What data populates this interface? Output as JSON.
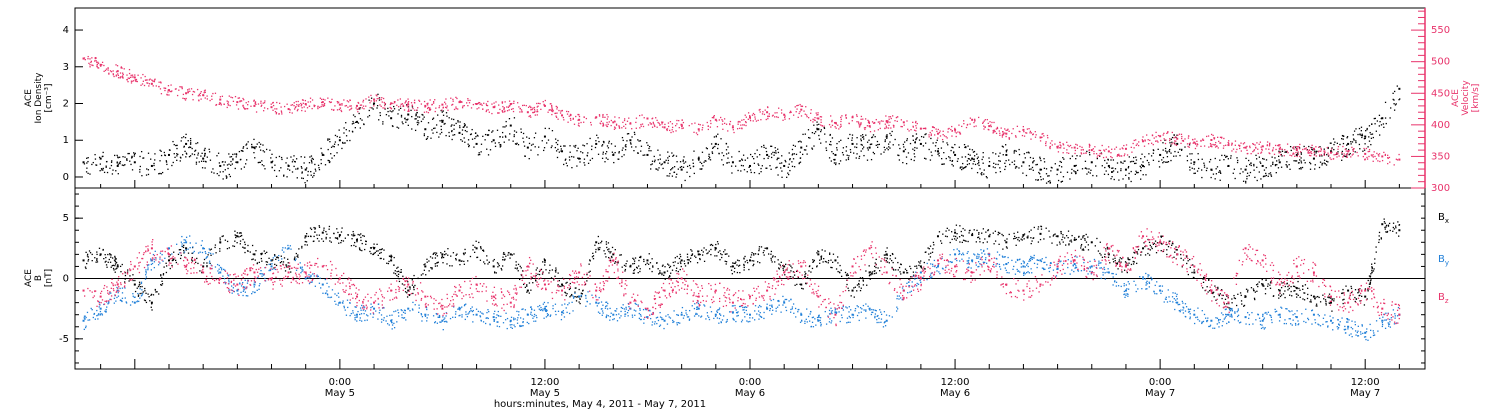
{
  "colors": {
    "black": "#000000",
    "pink": "#e8336b",
    "blue": "#1f7fd8",
    "frame": "#000000"
  },
  "x_axis": {
    "label": "hours:minutes, May  4, 2011 - May  7, 2011",
    "range_hours": [
      -15.5,
      63.5
    ],
    "ticks": [
      {
        "hour": 0,
        "time": "0:00",
        "date": "May 5"
      },
      {
        "hour": 12,
        "time": "12:00",
        "date": "May 5"
      },
      {
        "hour": 24,
        "time": "0:00",
        "date": "May 6"
      },
      {
        "hour": 36,
        "time": "12:00",
        "date": "May 6"
      },
      {
        "hour": 48,
        "time": "0:00",
        "date": "May 7"
      },
      {
        "hour": 60,
        "time": "12:00",
        "date": "May 7"
      }
    ]
  },
  "chart_data": [
    {
      "type": "scatter",
      "panel": "top",
      "ylabel_left": [
        "ACE",
        "Ion Density",
        "[cm⁻³]"
      ],
      "ylabel_right": [
        "ACE",
        "Velocity",
        "[km/s]"
      ],
      "ylim_left": [
        -0.3,
        4.6
      ],
      "ylim_right": [
        300,
        585
      ],
      "yticks_left": [
        0,
        1,
        2,
        3,
        4
      ],
      "yticks_right": [
        300,
        350,
        400,
        450,
        500,
        550
      ],
      "grid": false,
      "series": [
        {
          "name": "Ion Density",
          "axis": "left",
          "color": "#000000",
          "x": [
            -15,
            -14,
            -13,
            -12,
            -11,
            -10,
            -9,
            -8,
            -7,
            -6,
            -5,
            -4,
            -3,
            -2,
            -1,
            0,
            1,
            2,
            3,
            4,
            5,
            6,
            7,
            8,
            9,
            10,
            11,
            12,
            13,
            14,
            15,
            16,
            17,
            18,
            19,
            20,
            21,
            22,
            23,
            24,
            25,
            26,
            27,
            28,
            29,
            30,
            31,
            32,
            33,
            34,
            35,
            36,
            37,
            38,
            39,
            40,
            41,
            42,
            43,
            44,
            45,
            46,
            47,
            48,
            49,
            50,
            51,
            52,
            53,
            54,
            55,
            56,
            57,
            58,
            59,
            60,
            61,
            62
          ],
          "y": [
            0.4,
            0.5,
            0.3,
            0.4,
            0.3,
            0.6,
            0.9,
            0.5,
            0.3,
            0.4,
            0.8,
            0.4,
            0.3,
            0.2,
            0.6,
            1.0,
            1.5,
            2.0,
            1.6,
            1.7,
            1.3,
            1.5,
            1.2,
            0.9,
            1.0,
            1.4,
            0.8,
            1.1,
            0.7,
            0.5,
            0.9,
            0.6,
            1.0,
            0.6,
            0.4,
            0.2,
            0.5,
            0.9,
            0.4,
            0.3,
            0.6,
            0.3,
            0.8,
            1.3,
            0.6,
            0.9,
            0.8,
            1.1,
            0.7,
            0.9,
            0.7,
            0.6,
            0.5,
            0.3,
            0.6,
            0.4,
            0.2,
            0.2,
            0.3,
            0.4,
            0.3,
            0.2,
            0.3,
            0.6,
            0.9,
            0.4,
            0.2,
            0.3,
            0.2,
            0.3,
            0.4,
            0.6,
            0.5,
            0.7,
            0.9,
            1.1,
            1.6,
            2.4
          ]
        },
        {
          "name": "Velocity",
          "axis": "right",
          "color": "#e8336b",
          "x": [
            -15,
            -14,
            -13,
            -12,
            -11,
            -10,
            -9,
            -8,
            -7,
            -6,
            -5,
            -4,
            -3,
            -2,
            -1,
            0,
            1,
            2,
            3,
            4,
            5,
            6,
            7,
            8,
            9,
            10,
            11,
            12,
            13,
            14,
            15,
            16,
            17,
            18,
            19,
            20,
            21,
            22,
            23,
            24,
            25,
            26,
            27,
            28,
            29,
            30,
            31,
            32,
            33,
            34,
            35,
            36,
            37,
            38,
            39,
            40,
            41,
            42,
            43,
            44,
            45,
            46,
            47,
            48,
            49,
            50,
            51,
            52,
            53,
            54,
            55,
            56,
            57,
            58,
            59,
            60,
            61,
            62
          ],
          "y": [
            505,
            495,
            485,
            475,
            465,
            455,
            450,
            447,
            440,
            436,
            430,
            428,
            425,
            433,
            436,
            432,
            430,
            440,
            434,
            432,
            430,
            432,
            436,
            433,
            428,
            433,
            420,
            430,
            415,
            408,
            412,
            404,
            402,
            410,
            396,
            400,
            393,
            408,
            396,
            412,
            420,
            416,
            424,
            410,
            403,
            412,
            398,
            406,
            404,
            394,
            386,
            392,
            408,
            398,
            386,
            392,
            380,
            364,
            364,
            360,
            358,
            362,
            374,
            382,
            378,
            372,
            376,
            368,
            364,
            366,
            362,
            360,
            362,
            356,
            358,
            354,
            350,
            345
          ]
        }
      ]
    },
    {
      "type": "scatter",
      "panel": "bottom",
      "ylabel_left": [
        "ACE",
        "B",
        "[nT]"
      ],
      "ylim": [
        -7.5,
        7.5
      ],
      "yticks": [
        -5,
        0,
        5
      ],
      "zero_line": true,
      "grid": false,
      "legend_position": "right",
      "series": [
        {
          "name": "Bx",
          "legend_base": "B",
          "legend_sub": "x",
          "color": "#000000",
          "x": [
            -15,
            -14,
            -13,
            -12,
            -11,
            -10,
            -9,
            -8,
            -7,
            -6,
            -5,
            -4,
            -3,
            -2,
            -1,
            0,
            1,
            2,
            3,
            4,
            5,
            6,
            7,
            8,
            9,
            10,
            11,
            12,
            13,
            14,
            15,
            16,
            17,
            18,
            19,
            20,
            21,
            22,
            23,
            24,
            25,
            26,
            27,
            28,
            29,
            30,
            31,
            32,
            33,
            34,
            35,
            36,
            37,
            38,
            39,
            40,
            41,
            42,
            43,
            44,
            45,
            46,
            47,
            48,
            49,
            50,
            51,
            52,
            53,
            54,
            55,
            56,
            57,
            58,
            59,
            60,
            61,
            62
          ],
          "y": [
            1.5,
            2.0,
            1.0,
            -0.5,
            -2.0,
            1.5,
            2.5,
            1.0,
            3.0,
            3.5,
            2.0,
            1.5,
            1.0,
            3.5,
            3.8,
            3.6,
            3.2,
            2.5,
            1.5,
            -1.0,
            1.0,
            2.0,
            1.5,
            2.5,
            1.0,
            2.0,
            -1.0,
            1.5,
            -0.5,
            -1.5,
            3.0,
            2.0,
            1.0,
            1.5,
            0.5,
            1.5,
            2.0,
            2.5,
            1.0,
            1.5,
            2.5,
            1.0,
            -0.5,
            2.0,
            1.5,
            -1.0,
            0.5,
            2.0,
            0.5,
            1.0,
            3.5,
            3.8,
            3.6,
            3.5,
            3.0,
            3.6,
            3.7,
            3.5,
            3.2,
            3.0,
            2.0,
            1.0,
            2.5,
            3.0,
            2.0,
            0.5,
            -1.0,
            -2.0,
            -1.5,
            -0.5,
            -1.0,
            -0.8,
            -1.5,
            -2.0,
            -1.0,
            -1.5,
            4.5,
            4.0
          ]
        },
        {
          "name": "By",
          "legend_base": "B",
          "legend_sub": "y",
          "color": "#1f7fd8",
          "x": [
            -15,
            -14,
            -13,
            -12,
            -11,
            -10,
            -9,
            -8,
            -7,
            -6,
            -5,
            -4,
            -3,
            -2,
            -1,
            0,
            1,
            2,
            3,
            4,
            5,
            6,
            7,
            8,
            9,
            10,
            11,
            12,
            13,
            14,
            15,
            16,
            17,
            18,
            19,
            20,
            21,
            22,
            23,
            24,
            25,
            26,
            27,
            28,
            29,
            30,
            31,
            32,
            33,
            34,
            35,
            36,
            37,
            38,
            39,
            40,
            41,
            42,
            43,
            44,
            45,
            46,
            47,
            48,
            49,
            50,
            51,
            52,
            53,
            54,
            55,
            56,
            57,
            58,
            59,
            60,
            61,
            62
          ],
          "y": [
            -3.5,
            -2.5,
            -1.0,
            -2.0,
            1.5,
            2.5,
            3.0,
            2.5,
            0.5,
            -1.0,
            -0.5,
            1.0,
            2.5,
            0.0,
            -0.5,
            -2.0,
            -3.0,
            -2.5,
            -3.5,
            -2.5,
            -3.0,
            -3.5,
            -2.5,
            -3.0,
            -3.2,
            -3.5,
            -3.0,
            -2.5,
            -2.8,
            -1.5,
            -2.0,
            -3.0,
            -2.5,
            -3.2,
            -3.5,
            -3.0,
            -2.5,
            -3.0,
            -2.8,
            -3.0,
            -2.5,
            -2.0,
            -3.0,
            -3.5,
            -2.8,
            -3.0,
            -2.5,
            -3.5,
            -1.0,
            0.5,
            1.0,
            2.0,
            1.5,
            2.0,
            1.2,
            1.0,
            1.5,
            0.8,
            1.2,
            1.0,
            0.5,
            -1.0,
            0.0,
            -1.0,
            -2.0,
            -3.0,
            -3.5,
            -3.0,
            -3.2,
            -3.5,
            -3.0,
            -3.2,
            -3.0,
            -3.5,
            -4.0,
            -4.5,
            -3.5,
            -3.0
          ]
        },
        {
          "name": "Bz",
          "legend_base": "B",
          "legend_sub": "z",
          "color": "#e8336b",
          "x": [
            -15,
            -14,
            -13,
            -12,
            -11,
            -10,
            -9,
            -8,
            -7,
            -6,
            -5,
            -4,
            -3,
            -2,
            -1,
            0,
            1,
            2,
            3,
            4,
            5,
            6,
            7,
            8,
            9,
            10,
            11,
            12,
            13,
            14,
            15,
            16,
            17,
            18,
            19,
            20,
            21,
            22,
            23,
            24,
            25,
            26,
            27,
            28,
            29,
            30,
            31,
            32,
            33,
            34,
            35,
            36,
            37,
            38,
            39,
            40,
            41,
            42,
            43,
            44,
            45,
            46,
            47,
            48,
            49,
            50,
            51,
            52,
            53,
            54,
            55,
            56,
            57,
            58,
            59,
            60,
            61,
            62
          ],
          "y": [
            -1.0,
            -1.5,
            -0.5,
            1.0,
            2.5,
            2.0,
            1.0,
            0.5,
            0.0,
            -0.5,
            0.5,
            0.0,
            0.5,
            0.5,
            1.0,
            0.0,
            -1.5,
            -2.0,
            -1.0,
            -0.5,
            -1.5,
            -2.5,
            -1.0,
            -0.5,
            -1.5,
            -2.0,
            1.0,
            -0.5,
            -1.0,
            0.5,
            -1.0,
            1.5,
            -2.0,
            -2.5,
            -1.0,
            0.0,
            -1.5,
            -1.0,
            -2.0,
            -1.5,
            -1.0,
            0.5,
            1.0,
            -1.5,
            -3.0,
            1.0,
            2.5,
            0.5,
            -1.0,
            0.0,
            1.5,
            1.0,
            0.5,
            1.5,
            -0.5,
            -1.0,
            -0.5,
            1.0,
            1.5,
            0.5,
            2.5,
            1.0,
            3.5,
            3.0,
            2.0,
            1.0,
            -1.0,
            -2.0,
            2.5,
            1.5,
            -0.5,
            1.0,
            0.5,
            -1.5,
            -2.0,
            -1.0,
            -2.5,
            -3.0
          ]
        }
      ]
    }
  ]
}
